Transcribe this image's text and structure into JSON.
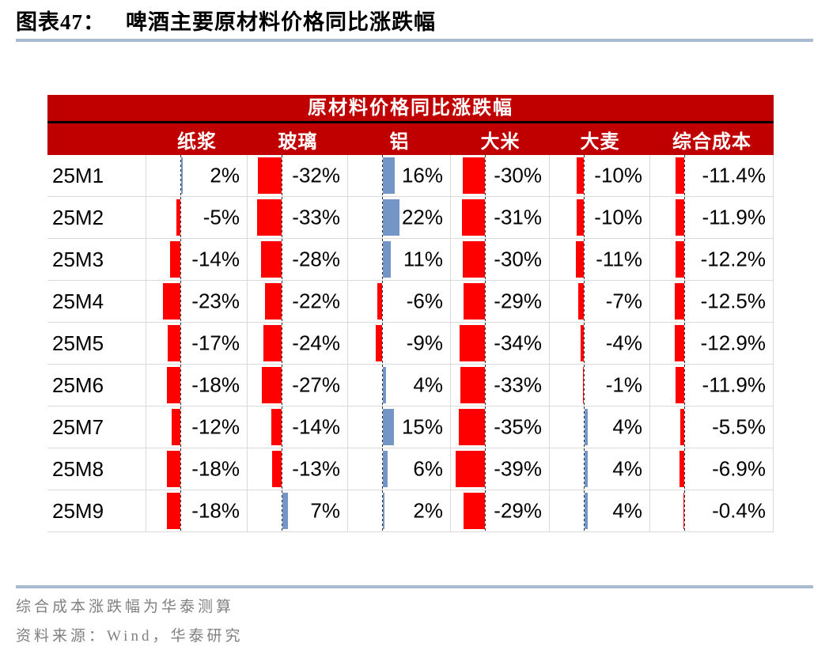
{
  "header": {
    "figure_label": "图表47：",
    "figure_title": "啤酒主要原材料价格同比涨跌幅"
  },
  "footer": {
    "note": "综合成本涨跌幅为华泰测算",
    "source": "资料来源：Wind，华泰研究"
  },
  "colors": {
    "header_bg": "#C00000",
    "bar_negative": "#FF0000",
    "bar_positive": "#7396C7",
    "divider_rule": "#A8BBD1",
    "gridline": "#D9D9D9",
    "footer_text": "#808080"
  },
  "chart_data": {
    "type": "table",
    "title": "原材料价格同比涨跌幅",
    "categories": [
      "25M1",
      "25M2",
      "25M3",
      "25M4",
      "25M5",
      "25M6",
      "25M7",
      "25M8",
      "25M9"
    ],
    "series": [
      {
        "name": "纸浆",
        "values": [
          2,
          -5,
          -14,
          -23,
          -17,
          -18,
          -12,
          -18,
          -18
        ],
        "labels": [
          "2%",
          "-5%",
          "-14%",
          "-23%",
          "-17%",
          "-18%",
          "-12%",
          "-18%",
          "-18%"
        ]
      },
      {
        "name": "玻璃",
        "values": [
          -32,
          -33,
          -28,
          -22,
          -24,
          -27,
          -14,
          -13,
          7
        ],
        "labels": [
          "-32%",
          "-33%",
          "-28%",
          "-22%",
          "-24%",
          "-27%",
          "-14%",
          "-13%",
          "7%"
        ]
      },
      {
        "name": "铝",
        "values": [
          16,
          22,
          11,
          -6,
          -9,
          4,
          15,
          6,
          2
        ],
        "labels": [
          "16%",
          "22%",
          "11%",
          "-6%",
          "-9%",
          "4%",
          "15%",
          "6%",
          "2%"
        ]
      },
      {
        "name": "大米",
        "values": [
          -30,
          -31,
          -30,
          -29,
          -34,
          -33,
          -35,
          -39,
          -29
        ],
        "labels": [
          "-30%",
          "-31%",
          "-30%",
          "-29%",
          "-34%",
          "-33%",
          "-35%",
          "-39%",
          "-29%"
        ]
      },
      {
        "name": "大麦",
        "values": [
          -10,
          -10,
          -11,
          -7,
          -4,
          -1,
          4,
          4,
          4
        ],
        "labels": [
          "-10%",
          "-10%",
          "-11%",
          "-7%",
          "-4%",
          "-1%",
          "4%",
          "4%",
          "4%"
        ]
      },
      {
        "name": "综合成本",
        "values": [
          -11.4,
          -11.9,
          -12.2,
          -12.5,
          -12.9,
          -11.9,
          -5.5,
          -6.9,
          -0.4
        ],
        "labels": [
          "-11.4%",
          "-11.9%",
          "-12.2%",
          "-12.5%",
          "-12.9%",
          "-11.9%",
          "-5.5%",
          "-6.9%",
          "-0.4%"
        ]
      }
    ],
    "bar_style": "in-cell data bars: dashed zero axis, negative red bars extend left, positive blue bars extend right",
    "legend_position": "none",
    "grid": "light-gray cell gridlines"
  }
}
